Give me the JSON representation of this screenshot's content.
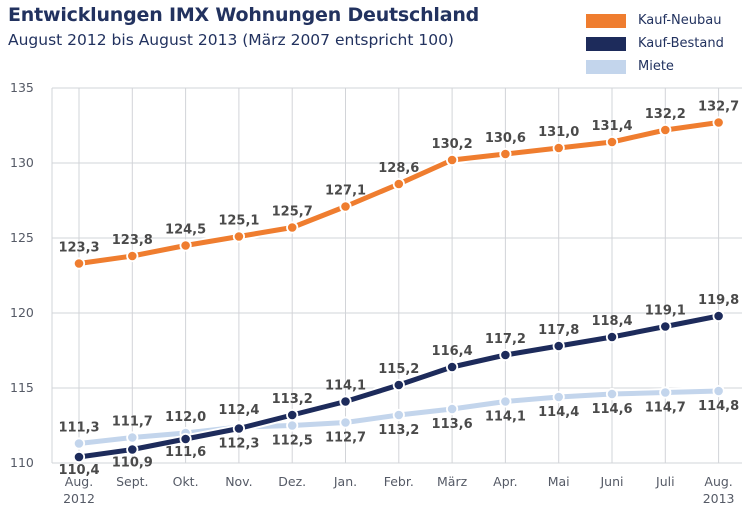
{
  "title": "Entwicklungen IMX Wohnungen Deutschland",
  "subtitle": "August 2012 bis August 2013 (März 2007 entspricht 100)",
  "chart_data": {
    "type": "line",
    "title": "Entwicklungen IMX Wohnungen Deutschland",
    "subtitle": "August 2012 bis August 2013 (März 2007 entspricht 100)",
    "xlabel": "",
    "ylabel": "",
    "ylim": [
      110,
      135
    ],
    "yticks": [
      110,
      115,
      120,
      125,
      130,
      135
    ],
    "grid": true,
    "legend_position": "top-right",
    "categories": [
      "Aug.",
      "Sept.",
      "Okt.",
      "Nov.",
      "Dez.",
      "Jan.",
      "Febr.",
      "März",
      "Apr.",
      "Mai",
      "Juni",
      "Juli",
      "Aug."
    ],
    "year_labels": [
      "2012",
      "",
      "",
      "",
      "",
      "",
      "",
      "",
      "",
      "",
      "",
      "",
      "2013"
    ],
    "series": [
      {
        "name": "Kauf-Neubau",
        "color": "#ef7d2f",
        "values": [
          123.3,
          123.8,
          124.5,
          125.1,
          125.7,
          127.1,
          128.6,
          130.2,
          130.6,
          131.0,
          131.4,
          132.2,
          132.7
        ],
        "labels": [
          "123,3",
          "123,8",
          "124,5",
          "125,1",
          "125,7",
          "127,1",
          "128,6",
          "130,2",
          "130,6",
          "131,0",
          "131,4",
          "132,2",
          "132,7"
        ]
      },
      {
        "name": "Kauf-Bestand",
        "color": "#1d2b5b",
        "values": [
          110.4,
          110.9,
          111.6,
          112.3,
          113.2,
          114.1,
          115.2,
          116.4,
          117.2,
          117.8,
          118.4,
          119.1,
          119.8
        ],
        "labels": [
          "110,4",
          "110,9",
          "111,6",
          "112,3",
          "113,2",
          "114,1",
          "115,2",
          "116,4",
          "117,2",
          "117,8",
          "118,4",
          "119,1",
          "119,8"
        ]
      },
      {
        "name": "Miete",
        "color": "#c3d5ec",
        "values": [
          111.3,
          111.7,
          112.0,
          112.4,
          112.5,
          112.7,
          113.2,
          113.6,
          114.1,
          114.4,
          114.6,
          114.7,
          114.8
        ],
        "labels": [
          "111,3",
          "111,7",
          "112,0",
          "112,4",
          "112,5",
          "112,7",
          "113,2",
          "113,6",
          "114,1",
          "114,4",
          "114,6",
          "114,7",
          "114,8"
        ]
      }
    ]
  }
}
